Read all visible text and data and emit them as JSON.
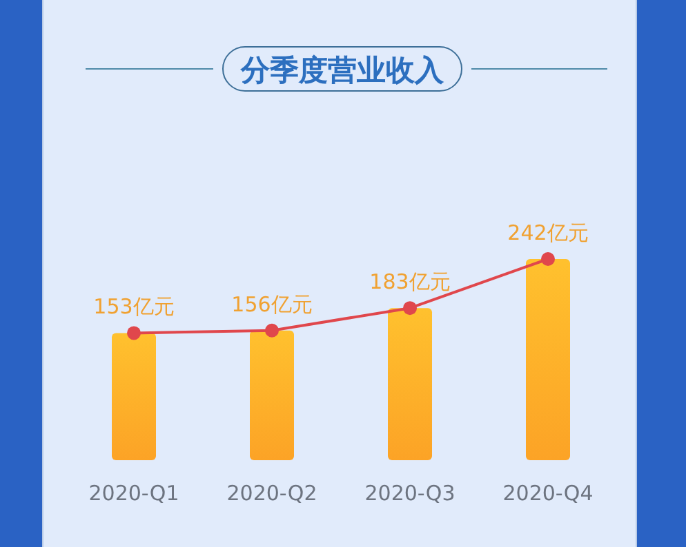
{
  "chart_data": {
    "type": "bar",
    "title": "分季度营业收入",
    "categories": [
      "2020-Q1",
      "2020-Q2",
      "2020-Q3",
      "2020-Q4"
    ],
    "series": [
      {
        "color": "#fca326",
        "values": [
          153,
          156,
          183,
          242
        ],
        "value_labels": [
          "153亿元",
          "156亿元",
          "183亿元",
          "242亿元"
        ]
      },
      {
        "type": "line",
        "color": "#e0474c",
        "marker": "circle",
        "values": [
          153,
          156,
          183,
          242
        ]
      }
    ]
  }
}
